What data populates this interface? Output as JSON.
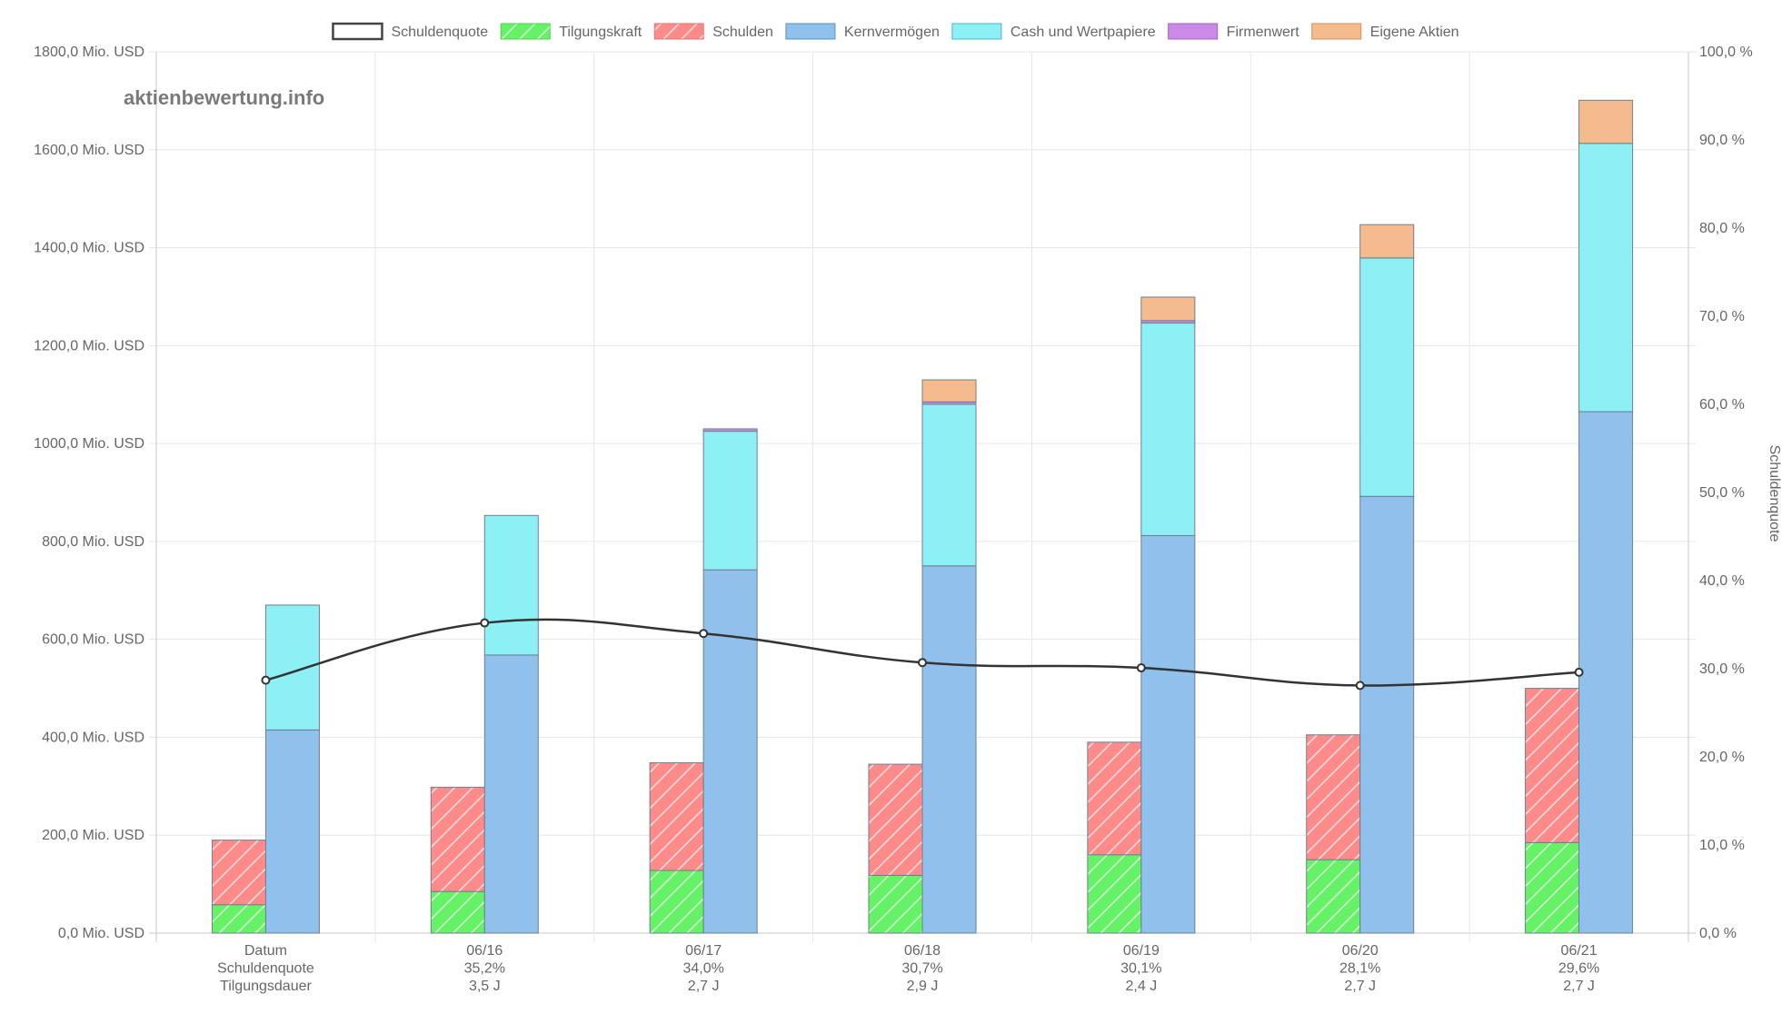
{
  "watermark": "aktienbewertung.info",
  "colors": {
    "Schuldenquote": "#333333",
    "Tilgungskraft": "#66f266",
    "Schulden": "#ff8a8a",
    "Kernvermögen": "#8fc1ec",
    "Cash und Wertpapiere": "#8cf0f5",
    "Firmenwert": "#cc8ae8",
    "Eigene Aktien": "#f4bb8c"
  },
  "chart_data": {
    "type": "bar",
    "stacked": true,
    "legend": [
      "Schuldenquote",
      "Tilgungskraft",
      "Schulden",
      "Kernvermögen",
      "Cash und Wertpapiere",
      "Firmenwert",
      "Eigene Aktien"
    ],
    "legend_position": "top",
    "grid": true,
    "categories": [
      "Datum",
      "06/16",
      "06/17",
      "06/18",
      "06/19",
      "06/20",
      "06/21"
    ],
    "category_rows": [
      [
        "Datum",
        "Schuldenquote",
        "Tilgungsdauer"
      ],
      [
        "06/16",
        "35,2%",
        "3,5 J"
      ],
      [
        "06/17",
        "34,0%",
        "2,7 J"
      ],
      [
        "06/18",
        "30,7%",
        "2,9 J"
      ],
      [
        "06/19",
        "30,1%",
        "2,4 J"
      ],
      [
        "06/20",
        "28,1%",
        "2,7 J"
      ],
      [
        "06/21",
        "29,6%",
        "2,7 J"
      ]
    ],
    "y_left": {
      "min": 0,
      "max": 1800,
      "step": 200,
      "tick_labels": [
        "0,0 Mio. USD",
        "200,0 Mio. USD",
        "400,0 Mio. USD",
        "600,0 Mio. USD",
        "800,0 Mio. USD",
        "1000,0 Mio. USD",
        "1200,0 Mio. USD",
        "1400,0 Mio. USD",
        "1600,0 Mio. USD",
        "1800,0 Mio. USD"
      ]
    },
    "y_right": {
      "title": "Schuldenquote",
      "min": 0,
      "max": 100,
      "step": 10,
      "tick_labels": [
        "0,0 %",
        "10,0 %",
        "20,0 %",
        "30,0 %",
        "40,0 %",
        "50,0 %",
        "60,0 %",
        "70,0 %",
        "80,0 %",
        "90,0 %",
        "100,0 %"
      ]
    },
    "debt_stack": [
      {
        "name": "Tilgungskraft",
        "values": [
          58,
          85,
          128,
          118,
          160,
          150,
          185
        ]
      },
      {
        "name": "Schulden",
        "values": [
          132,
          213,
          220,
          227,
          230,
          255,
          315
        ]
      }
    ],
    "asset_stack": [
      {
        "name": "Kernvermögen",
        "values": [
          415,
          568,
          742,
          750,
          812,
          892,
          1065
        ]
      },
      {
        "name": "Cash und Wertpapiere",
        "values": [
          255,
          285,
          283,
          330,
          434,
          487,
          548
        ]
      },
      {
        "name": "Firmenwert",
        "values": [
          0,
          0,
          5,
          5,
          5,
          0,
          0
        ]
      },
      {
        "name": "Eigene Aktien",
        "values": [
          0,
          0,
          0,
          45,
          48,
          68,
          88
        ]
      }
    ],
    "line": {
      "name": "Schuldenquote",
      "axis": "right",
      "values": [
        28.7,
        35.2,
        34.0,
        30.7,
        30.1,
        28.1,
        29.6
      ]
    }
  }
}
